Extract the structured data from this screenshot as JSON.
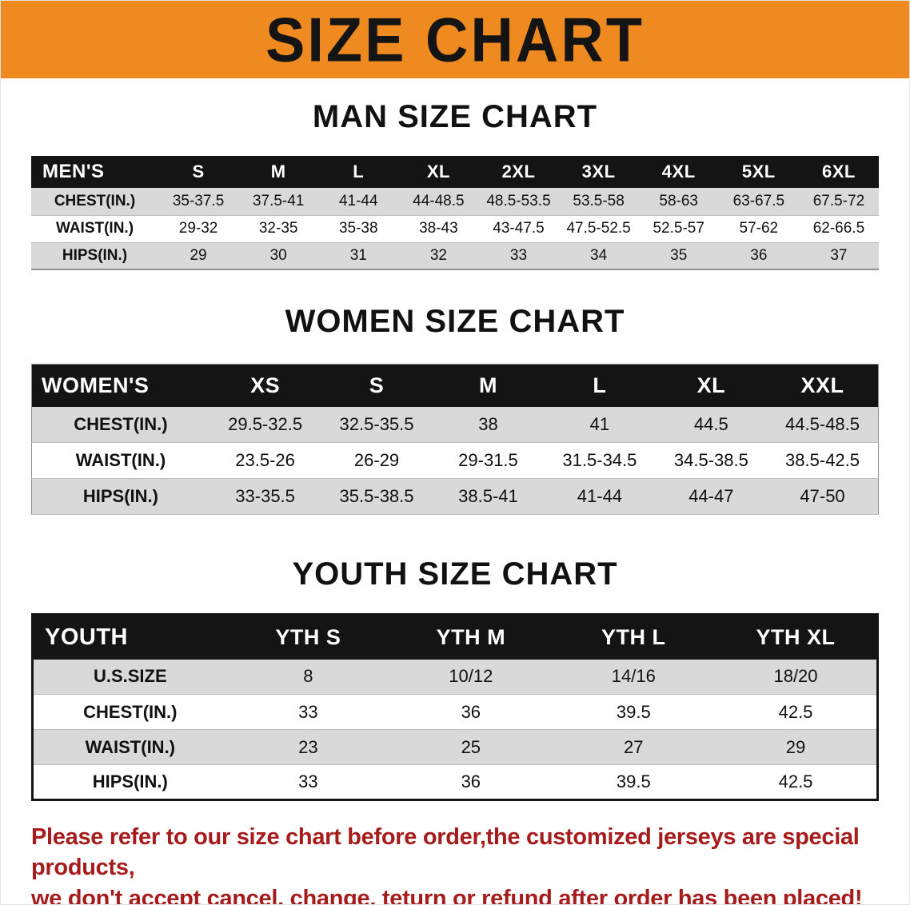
{
  "banner": {
    "title": "SIZE CHART",
    "bg_color": "#ee8a1f",
    "text_color": "#141414"
  },
  "tables": [
    {
      "title": "MAN SIZE CHART",
      "header": [
        "MEN'S",
        "S",
        "M",
        "L",
        "XL",
        "2XL",
        "3XL",
        "4XL",
        "5XL",
        "6XL"
      ],
      "rows": [
        {
          "label": "CHEST(IN.)",
          "values": [
            "35-37.5",
            "37.5-41",
            "41-44",
            "44-48.5",
            "48.5-53.5",
            "53.5-58",
            "58-63",
            "63-67.5",
            "67.5-72"
          ]
        },
        {
          "label": "WAIST(IN.)",
          "values": [
            "29-32",
            "32-35",
            "35-38",
            "38-43",
            "43-47.5",
            "47.5-52.5",
            "52.5-57",
            "57-62",
            "62-66.5"
          ]
        },
        {
          "label": "HIPS(IN.)",
          "values": [
            "29",
            "30",
            "31",
            "32",
            "33",
            "34",
            "35",
            "36",
            "37"
          ]
        }
      ]
    },
    {
      "title": "WOMEN SIZE CHART",
      "header": [
        "WOMEN'S",
        "XS",
        "S",
        "M",
        "L",
        "XL",
        "XXL"
      ],
      "rows": [
        {
          "label": "CHEST(IN.)",
          "values": [
            "29.5-32.5",
            "32.5-35.5",
            "38",
            "41",
            "44.5",
            "44.5-48.5"
          ]
        },
        {
          "label": "WAIST(IN.)",
          "values": [
            "23.5-26",
            "26-29",
            "29-31.5",
            "31.5-34.5",
            "34.5-38.5",
            "38.5-42.5"
          ]
        },
        {
          "label": "HIPS(IN.)",
          "values": [
            "33-35.5",
            "35.5-38.5",
            "38.5-41",
            "41-44",
            "44-47",
            "47-50"
          ]
        }
      ]
    },
    {
      "title": "YOUTH SIZE CHART",
      "header": [
        "YOUTH",
        "YTH S",
        "YTH M",
        "YTH L",
        "YTH XL"
      ],
      "rows": [
        {
          "label": "U.S.SIZE",
          "values": [
            "8",
            "10/12",
            "14/16",
            "18/20"
          ]
        },
        {
          "label": "CHEST(IN.)",
          "values": [
            "33",
            "36",
            "39.5",
            "42.5"
          ]
        },
        {
          "label": "WAIST(IN.)",
          "values": [
            "23",
            "25",
            "27",
            "29"
          ]
        },
        {
          "label": "HIPS(IN.)",
          "values": [
            "33",
            "36",
            "39.5",
            "42.5"
          ]
        }
      ]
    }
  ],
  "footer": {
    "line1": "Please refer to our size chart before order,the customized jerseys are special products,",
    "line2": "we don't accept cancel, change, teturn or refund after order has been placed!",
    "text_color": "#a61c1c"
  },
  "table_colors": {
    "header_bg": "#141414",
    "header_text": "#ffffff",
    "row_alt_bg": "#d9d9d9"
  }
}
